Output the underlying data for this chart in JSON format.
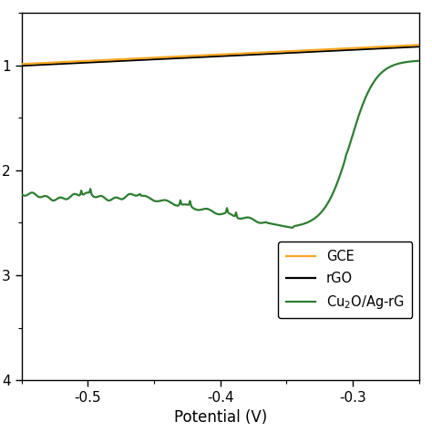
{
  "title": "",
  "xlabel": "Potential (V)",
  "ylabel": "",
  "xlim": [
    -0.55,
    -0.25
  ],
  "ylim": [
    -0.04,
    -0.005
  ],
  "yticks": [
    -0.04,
    -0.03,
    -0.02,
    -0.01
  ],
  "xticks": [
    -0.5,
    -0.4,
    -0.3
  ],
  "background_color": "#ffffff",
  "gce_color": "#f5a623",
  "rgo_color": "#000000",
  "cu2o_color": "#2e7d32",
  "line_width": 1.6,
  "xlabel_fontsize": 12,
  "tick_fontsize": 11
}
